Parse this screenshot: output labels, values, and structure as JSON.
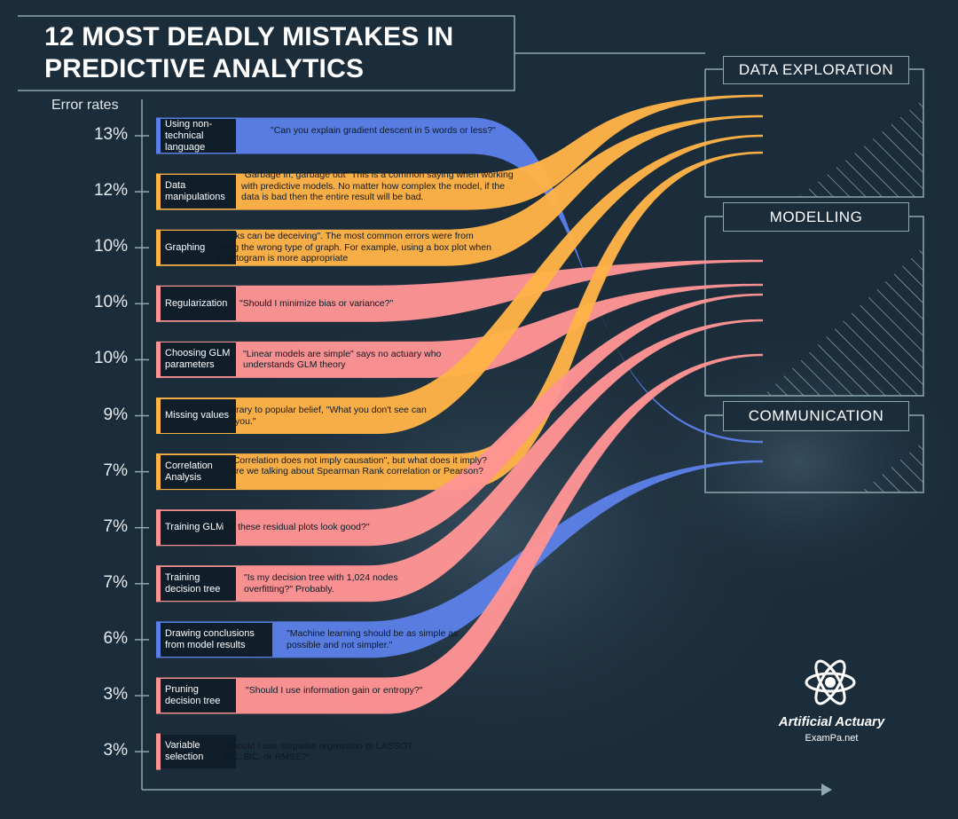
{
  "title": "12 MOST DEADLY MISTAKES IN PREDICTIVE ANALYTICS",
  "chart_data": {
    "type": "bar",
    "ylabel": "Error rates",
    "categories": [
      "Using non-technical language",
      "Data manipulations",
      "Graphing",
      "Regularization",
      "Choosing GLM parameters",
      "Missing values",
      "Correlation Analysis",
      "Training GLM",
      "Training decision tree",
      "Drawing conclusions from model results",
      "Pruning decision tree",
      "Variable selection"
    ],
    "values": [
      13,
      12,
      10,
      10,
      10,
      9,
      7,
      7,
      7,
      6,
      3,
      3
    ],
    "value_labels": [
      "13%",
      "12%",
      "10%",
      "10%",
      "10%",
      "9%",
      "7%",
      "7%",
      "7%",
      "6%",
      "3%",
      "3%"
    ],
    "groups": [
      "Communication",
      "Data Exploration",
      "Data Exploration",
      "Modelling",
      "Modelling",
      "Data Exploration",
      "Data Exploration",
      "Modelling",
      "Modelling",
      "Communication",
      "Modelling",
      "Modelling"
    ],
    "quotes": [
      "\"Can you explain gradient descent in 5 words or less?\"",
      "\"Garbage in; garbage out\" This is a common saying when working with predictive models. No matter how complex the model, if the data is bad then the entire result will be bad.",
      "\"Looks can be deceiving\".  The most common errors were from using the wrong type of graph.  For example, using a box plot when a histogram is more appropriate",
      "\"Should I minimize bias or variance?\"",
      "\"Linear models are simple\" says no actuary who understands GLM theory",
      "Contrary to popular belief, \"What you don't see can hurt you.\"",
      "\"Correlation does not imply causation\", but what does it imply?  Are we talking about Spearman Rank correlation or Pearson?",
      "\"Do these residual plots look good?\"",
      "\"Is my decision tree with 1,024 nodes overfitting?\"  Probably.",
      "\"Machine learning should be as simple as possible and not simpler.\"",
      "\"Should I use information gain or entropy?\"",
      "\"Should I use stepwise regression or LASSO? AIC, BIC, or RMSE?\""
    ]
  },
  "sections": {
    "data_exploration": "DATA EXPLORATION",
    "modelling": "MODELLING",
    "communication": "COMMUNICATION"
  },
  "colors": {
    "Data Exploration": "#ffb347",
    "Modelling": "#ff9494",
    "Communication": "#5b7fe6",
    "background": "#1b2c3a",
    "frame": "#8eaab0"
  },
  "logo": {
    "name": "Artificial Actuary",
    "site": "ExamPa.net"
  }
}
